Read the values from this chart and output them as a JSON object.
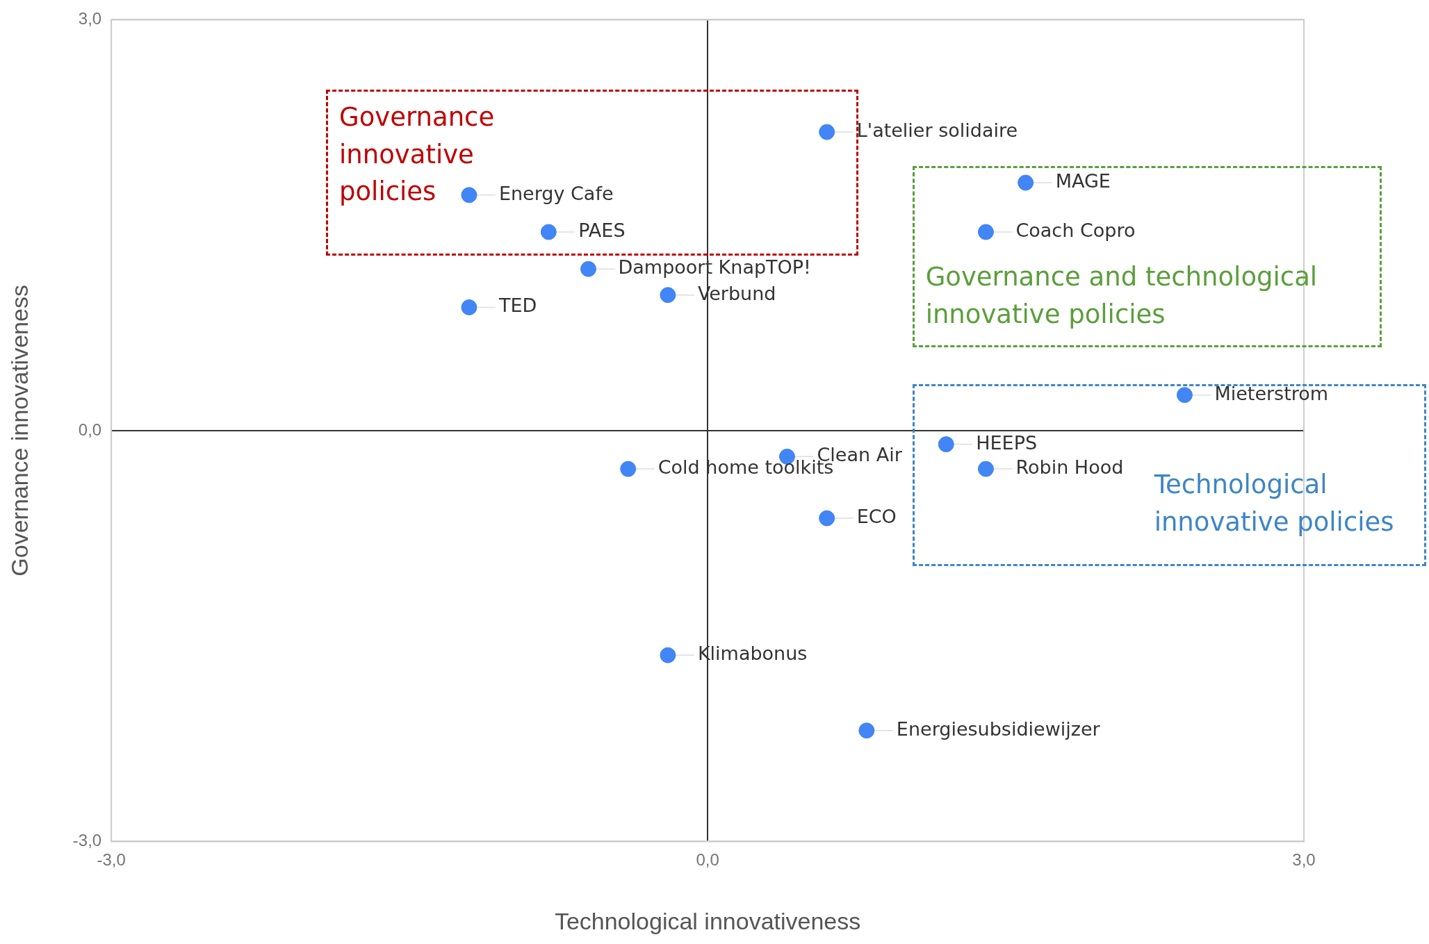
{
  "chart_data": {
    "type": "scatter",
    "xlabel": "Technological innovativeness",
    "ylabel": "Governance innovativeness",
    "xlim": [
      -3,
      3
    ],
    "ylim": [
      -3,
      3
    ],
    "xticks": [
      {
        "value": -3,
        "label": "-3,0"
      },
      {
        "value": 0,
        "label": "0,0"
      },
      {
        "value": 3,
        "label": "3,0"
      }
    ],
    "yticks": [
      {
        "value": -3,
        "label": "-3,0"
      },
      {
        "value": 0,
        "label": "0,0"
      },
      {
        "value": 3,
        "label": "3,0"
      }
    ],
    "grid": true,
    "legend": false,
    "marker": "circle",
    "series": [
      {
        "color": "#4285f4",
        "x": [
          0.6,
          -1.2,
          -0.8,
          -0.6,
          -0.2,
          -1.2,
          1.6,
          1.4,
          2.4,
          1.2,
          0.4,
          1.4,
          -0.4,
          0.6,
          -0.2,
          0.8
        ],
        "values": [
          2.18,
          1.72,
          1.45,
          1.18,
          0.99,
          0.9,
          1.81,
          1.45,
          0.26,
          -0.1,
          -0.19,
          -0.28,
          -0.28,
          -0.64,
          -1.64,
          -2.19
        ]
      }
    ],
    "annotations": [
      {
        "text": "L'atelier solidaire",
        "x": 0.6,
        "y": 2.18
      },
      {
        "text": "Energy Cafe",
        "x": -1.2,
        "y": 1.72
      },
      {
        "text": "PAES",
        "x": -0.8,
        "y": 1.45
      },
      {
        "text": "Dampoort KnapTOP!",
        "x": -0.6,
        "y": 1.18
      },
      {
        "text": "Verbund",
        "x": -0.2,
        "y": 0.99
      },
      {
        "text": "TED",
        "x": -1.2,
        "y": 0.9
      },
      {
        "text": "MAGE",
        "x": 1.6,
        "y": 1.81
      },
      {
        "text": "Coach Copro",
        "x": 1.4,
        "y": 1.45
      },
      {
        "text": "Mieterstrom",
        "x": 2.4,
        "y": 0.26
      },
      {
        "text": "HEEPS",
        "x": 1.2,
        "y": -0.1
      },
      {
        "text": "Clean Air",
        "x": 0.4,
        "y": -0.19
      },
      {
        "text": "Robin Hood",
        "x": 1.4,
        "y": -0.28
      },
      {
        "text": "Cold home toolkits",
        "x": -0.4,
        "y": -0.28
      },
      {
        "text": "ECO",
        "x": 0.6,
        "y": -0.64
      },
      {
        "text": "Klimabonus",
        "x": -0.2,
        "y": -1.64
      },
      {
        "text": "Energiesubsidiewijzer",
        "x": 0.8,
        "y": -2.19
      },
      "Governance innovative policies",
      "Governance and technological innovative policies",
      "Technological innovative policies"
    ]
  }
}
